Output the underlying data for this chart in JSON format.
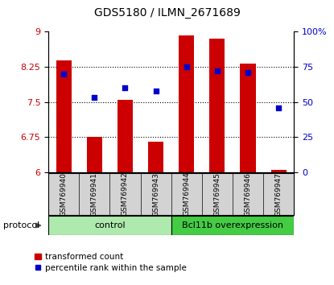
{
  "title": "GDS5180 / ILMN_2671689",
  "samples": [
    "GSM769940",
    "GSM769941",
    "GSM769942",
    "GSM769943",
    "GSM769944",
    "GSM769945",
    "GSM769946",
    "GSM769947"
  ],
  "bar_values": [
    8.38,
    6.75,
    7.55,
    6.65,
    8.92,
    8.85,
    8.32,
    6.06
  ],
  "dot_values": [
    70,
    53,
    60,
    58,
    75,
    72,
    71,
    46
  ],
  "ylim_left": [
    6,
    9
  ],
  "ylim_right": [
    0,
    100
  ],
  "yticks_left": [
    6,
    6.75,
    7.5,
    8.25,
    9
  ],
  "yticks_right": [
    0,
    25,
    50,
    75,
    100
  ],
  "ytick_labels_left": [
    "6",
    "6.75",
    "7.5",
    "8.25",
    "9"
  ],
  "ytick_labels_right": [
    "0",
    "25",
    "50",
    "75",
    "100%"
  ],
  "bar_color": "#CC0000",
  "dot_color": "#0000CC",
  "bar_width": 0.5,
  "control_color": "#AEEAAE",
  "bcl_color": "#44CC44",
  "protocol_label": "protocol",
  "legend_bar_label": "transformed count",
  "legend_dot_label": "percentile rank within the sample",
  "grid_linestyle": ":",
  "tick_label_color_left": "#CC0000",
  "tick_label_color_right": "#0000CC",
  "title_fontsize": 10,
  "tick_fontsize": 8,
  "label_fontsize": 7.5
}
